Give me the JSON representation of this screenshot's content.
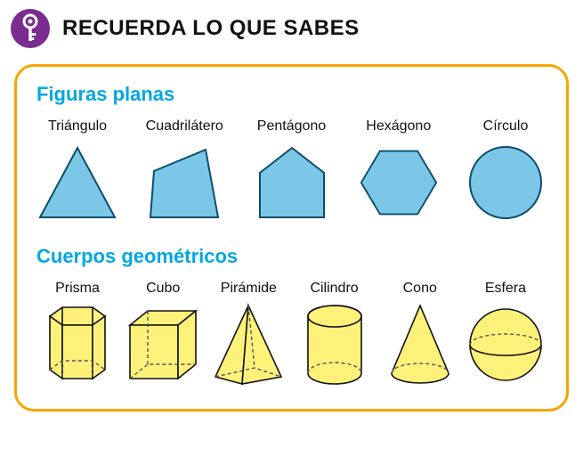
{
  "colors": {
    "badge_bg": "#7a2c8f",
    "badge_icon": "#ffffff",
    "title_color": "#111111",
    "panel_border": "#f6a500",
    "section_title_color": "#00a7e1",
    "label_color": "#111111",
    "flat_fill": "#7cc7e8",
    "flat_stroke": "#0b4d6b",
    "solid_fill": "#fdf17a",
    "solid_stroke": "#111111",
    "dash_color": "#555555"
  },
  "header": {
    "title": "RECUERDA LO QUE SABES"
  },
  "sections": {
    "flat": {
      "title": "Figuras planas",
      "items": [
        {
          "name": "Triángulo"
        },
        {
          "name": "Cuadrilátero"
        },
        {
          "name": "Pentágono"
        },
        {
          "name": "Hexágono"
        },
        {
          "name": "Círculo"
        }
      ]
    },
    "solids": {
      "title": "Cuerpos geométricos",
      "items": [
        {
          "name": "Prisma"
        },
        {
          "name": "Cubo"
        },
        {
          "name": "Pirámide"
        },
        {
          "name": "Cilindro"
        },
        {
          "name": "Cono"
        },
        {
          "name": "Esfera"
        }
      ]
    }
  },
  "typography": {
    "title_fontsize": 24,
    "section_title_fontsize": 22,
    "label_fontsize": 16
  }
}
